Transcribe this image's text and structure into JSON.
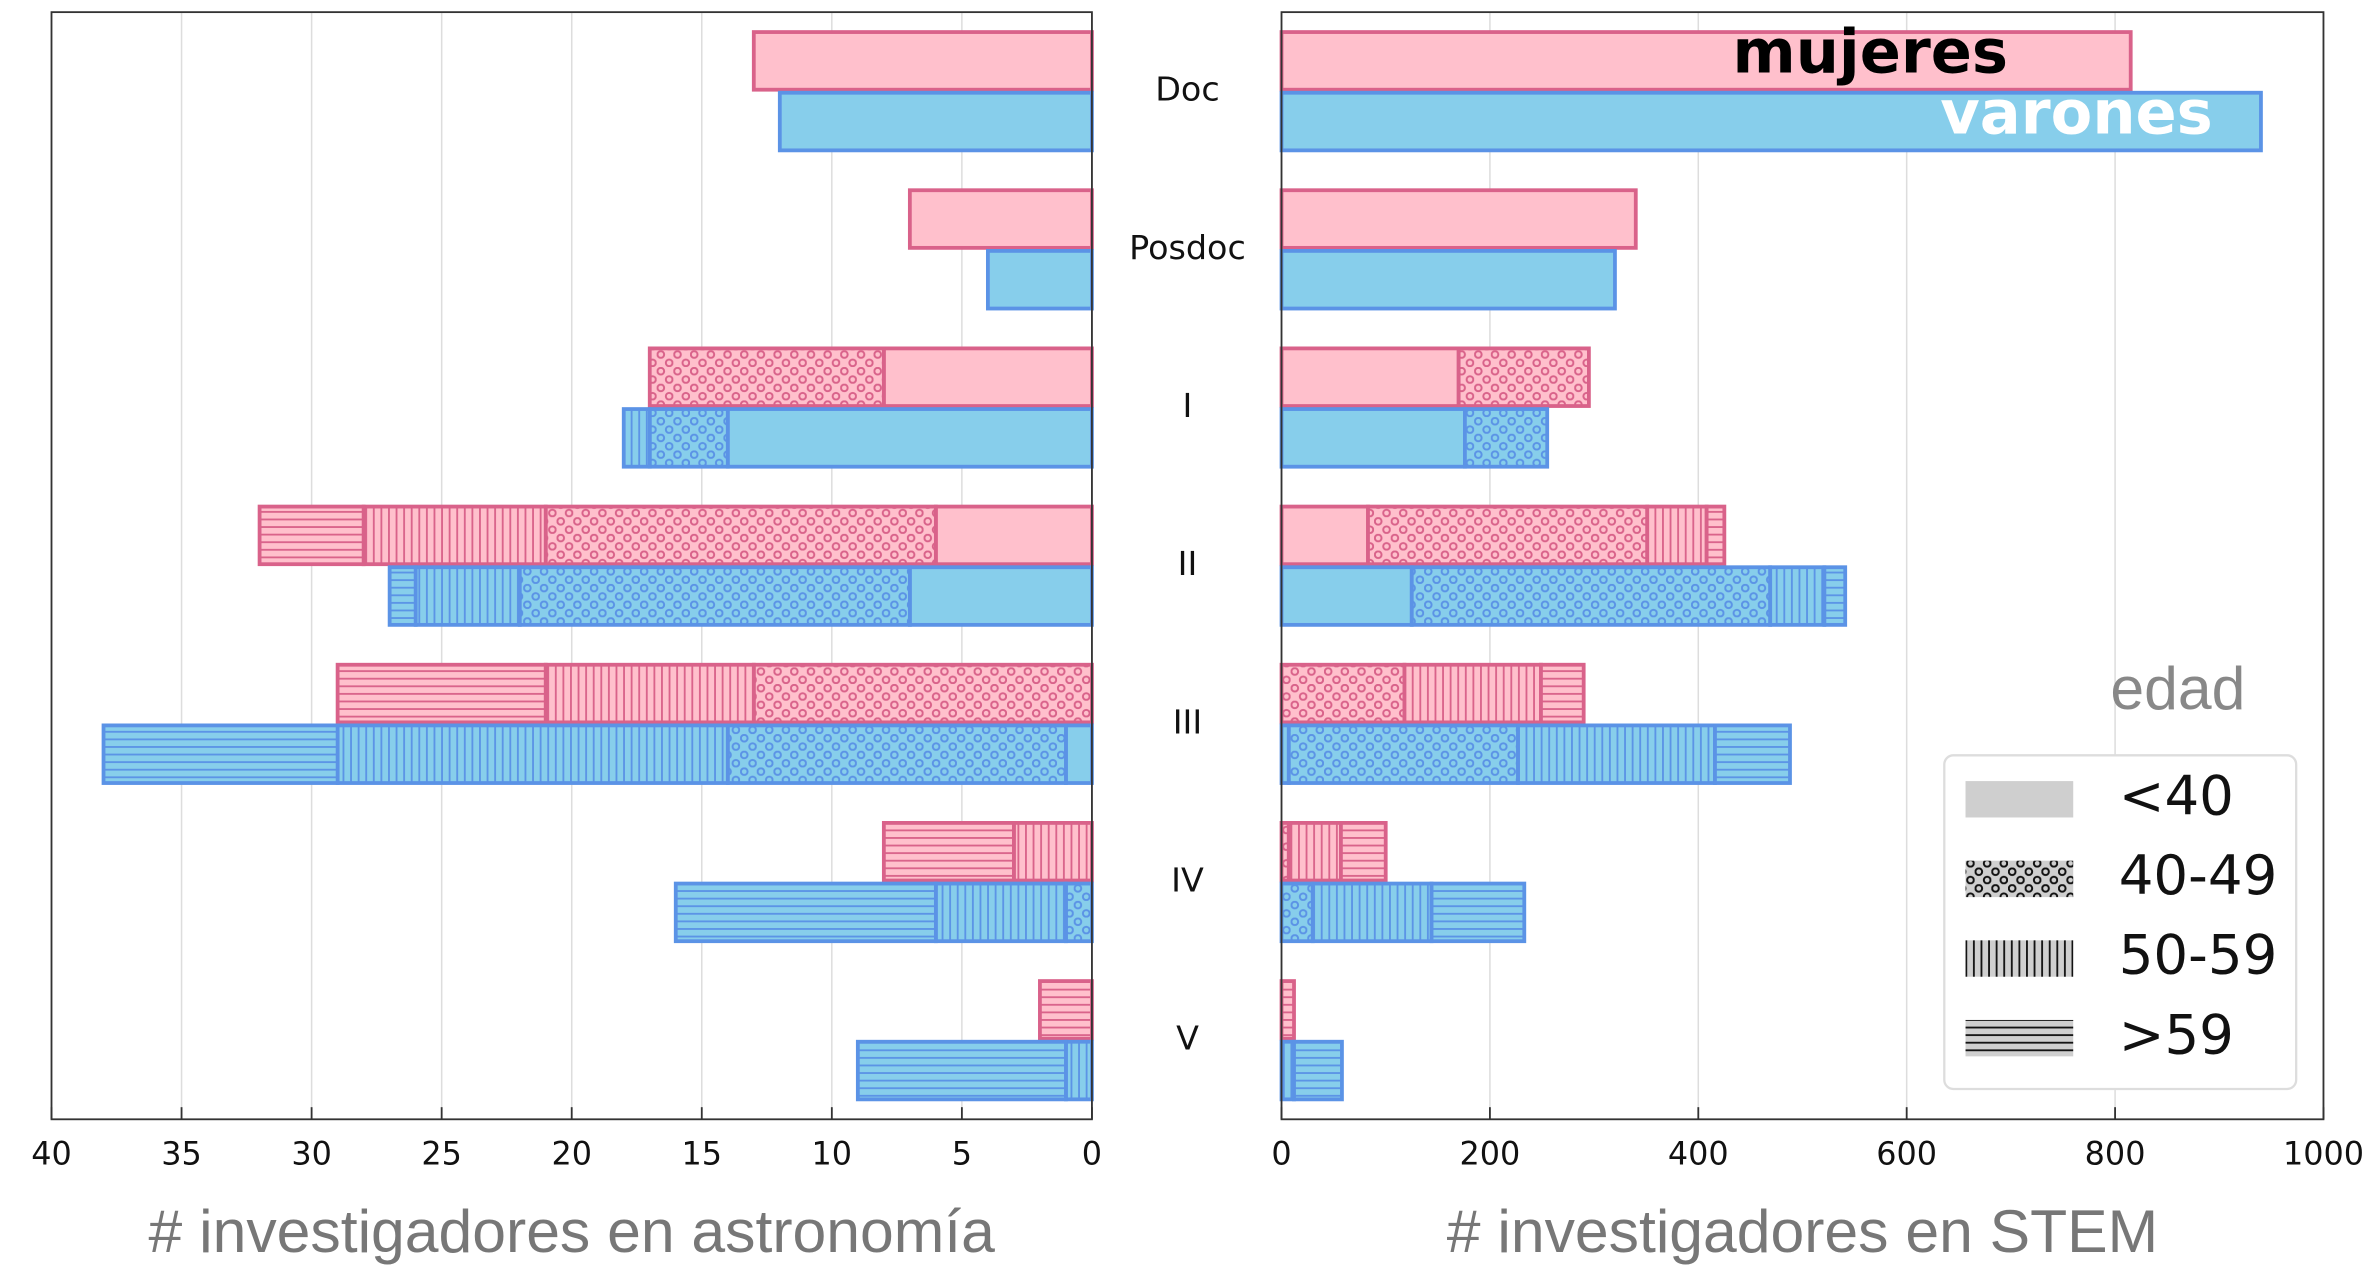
{
  "chart_data": {
    "type": "bar",
    "orientation": "horizontal",
    "stacked": true,
    "categories": [
      "Doc",
      "Posdoc",
      "I",
      "II",
      "III",
      "IV",
      "V"
    ],
    "groups": [
      {
        "name": "mujeres",
        "color": "#ffc0cc",
        "edgecolor": "#d9628a",
        "label_color": "#000000"
      },
      {
        "name": "varones",
        "color": "#87ceeb",
        "edgecolor": "#5b93e6",
        "label_color": "#ffffff"
      }
    ],
    "legend": {
      "title": "edad",
      "labels": [
        "<40",
        "40-49",
        "50-59",
        ">59"
      ],
      "hatches": [
        "none",
        "circles",
        "vlines",
        "hlines"
      ],
      "corner": "lower right"
    },
    "grid": true,
    "panels": [
      {
        "xlabel": "# investigadores en astronomía",
        "xlim": [
          40,
          0
        ],
        "xticks": [
          40,
          35,
          30,
          25,
          20,
          15,
          10,
          5,
          0
        ],
        "series": [
          {
            "values": [
              [
                13,
                0,
                0,
                0
              ],
              [
                7,
                0,
                0,
                0
              ],
              [
                8,
                9,
                0,
                0
              ],
              [
                6,
                15,
                7,
                4
              ],
              [
                0,
                13,
                8,
                8
              ],
              [
                0,
                0,
                3,
                5
              ],
              [
                0,
                0,
                0,
                2
              ]
            ]
          },
          {
            "values": [
              [
                12,
                0,
                0,
                0
              ],
              [
                4,
                0,
                0,
                0
              ],
              [
                14,
                3,
                1,
                0
              ],
              [
                7,
                15,
                4,
                1
              ],
              [
                1,
                13,
                15,
                9
              ],
              [
                0,
                1,
                5,
                10
              ],
              [
                0,
                0,
                1,
                8
              ]
            ]
          }
        ]
      },
      {
        "xlabel": "# investigadores en STEM",
        "xlim": [
          0,
          1000
        ],
        "xticks": [
          0,
          200,
          400,
          600,
          800,
          1000
        ],
        "series": [
          {
            "values": [
              [
                815,
                0,
                0,
                0
              ],
              [
                340,
                0,
                0,
                0
              ],
              [
                170,
                125,
                0,
                0
              ],
              [
                83,
                268,
                57,
                17
              ],
              [
                0,
                118,
                131,
                41
              ],
              [
                0,
                7,
                50,
                43
              ],
              [
                0,
                0,
                0,
                12
              ]
            ]
          },
          {
            "values": [
              [
                940,
                0,
                0,
                0
              ],
              [
                320,
                0,
                0,
                0
              ],
              [
                176,
                79,
                0,
                0
              ],
              [
                125,
                344,
                52,
                20
              ],
              [
                7,
                220,
                189,
                72
              ],
              [
                0,
                30,
                114,
                89
              ],
              [
                0,
                0,
                12,
                46
              ]
            ]
          }
        ]
      }
    ]
  }
}
